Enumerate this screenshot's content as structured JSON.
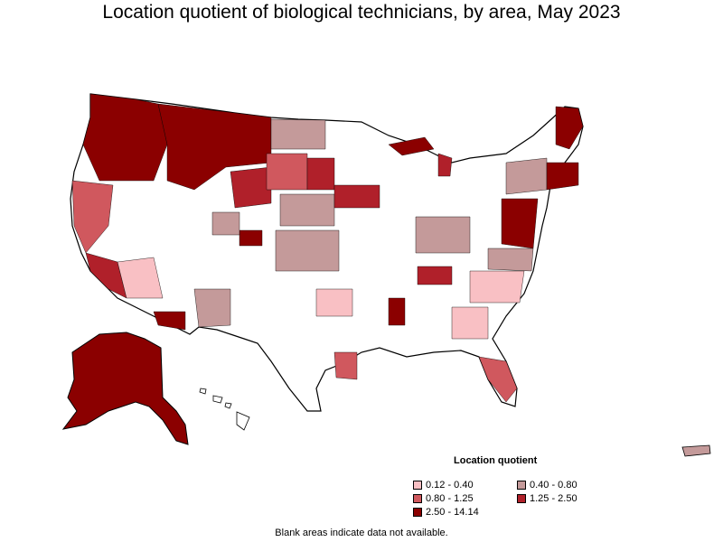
{
  "title": "Location quotient of biological technicians, by area, May 2023",
  "legend": {
    "title": "Location quotient",
    "items": [
      {
        "label": "0.12 - 0.40",
        "color": "#f9c0c4"
      },
      {
        "label": "0.40 - 0.80",
        "color": "#c49a9a"
      },
      {
        "label": "0.80 - 1.25",
        "color": "#d0585e"
      },
      {
        "label": "1.25 - 2.50",
        "color": "#b0202a"
      },
      {
        "label": "2.50 - 14.14",
        "color": "#8b0000"
      }
    ]
  },
  "note": "Blank areas indicate data not available.",
  "colors": {
    "blank": "#ffffff",
    "border": "#000000"
  }
}
